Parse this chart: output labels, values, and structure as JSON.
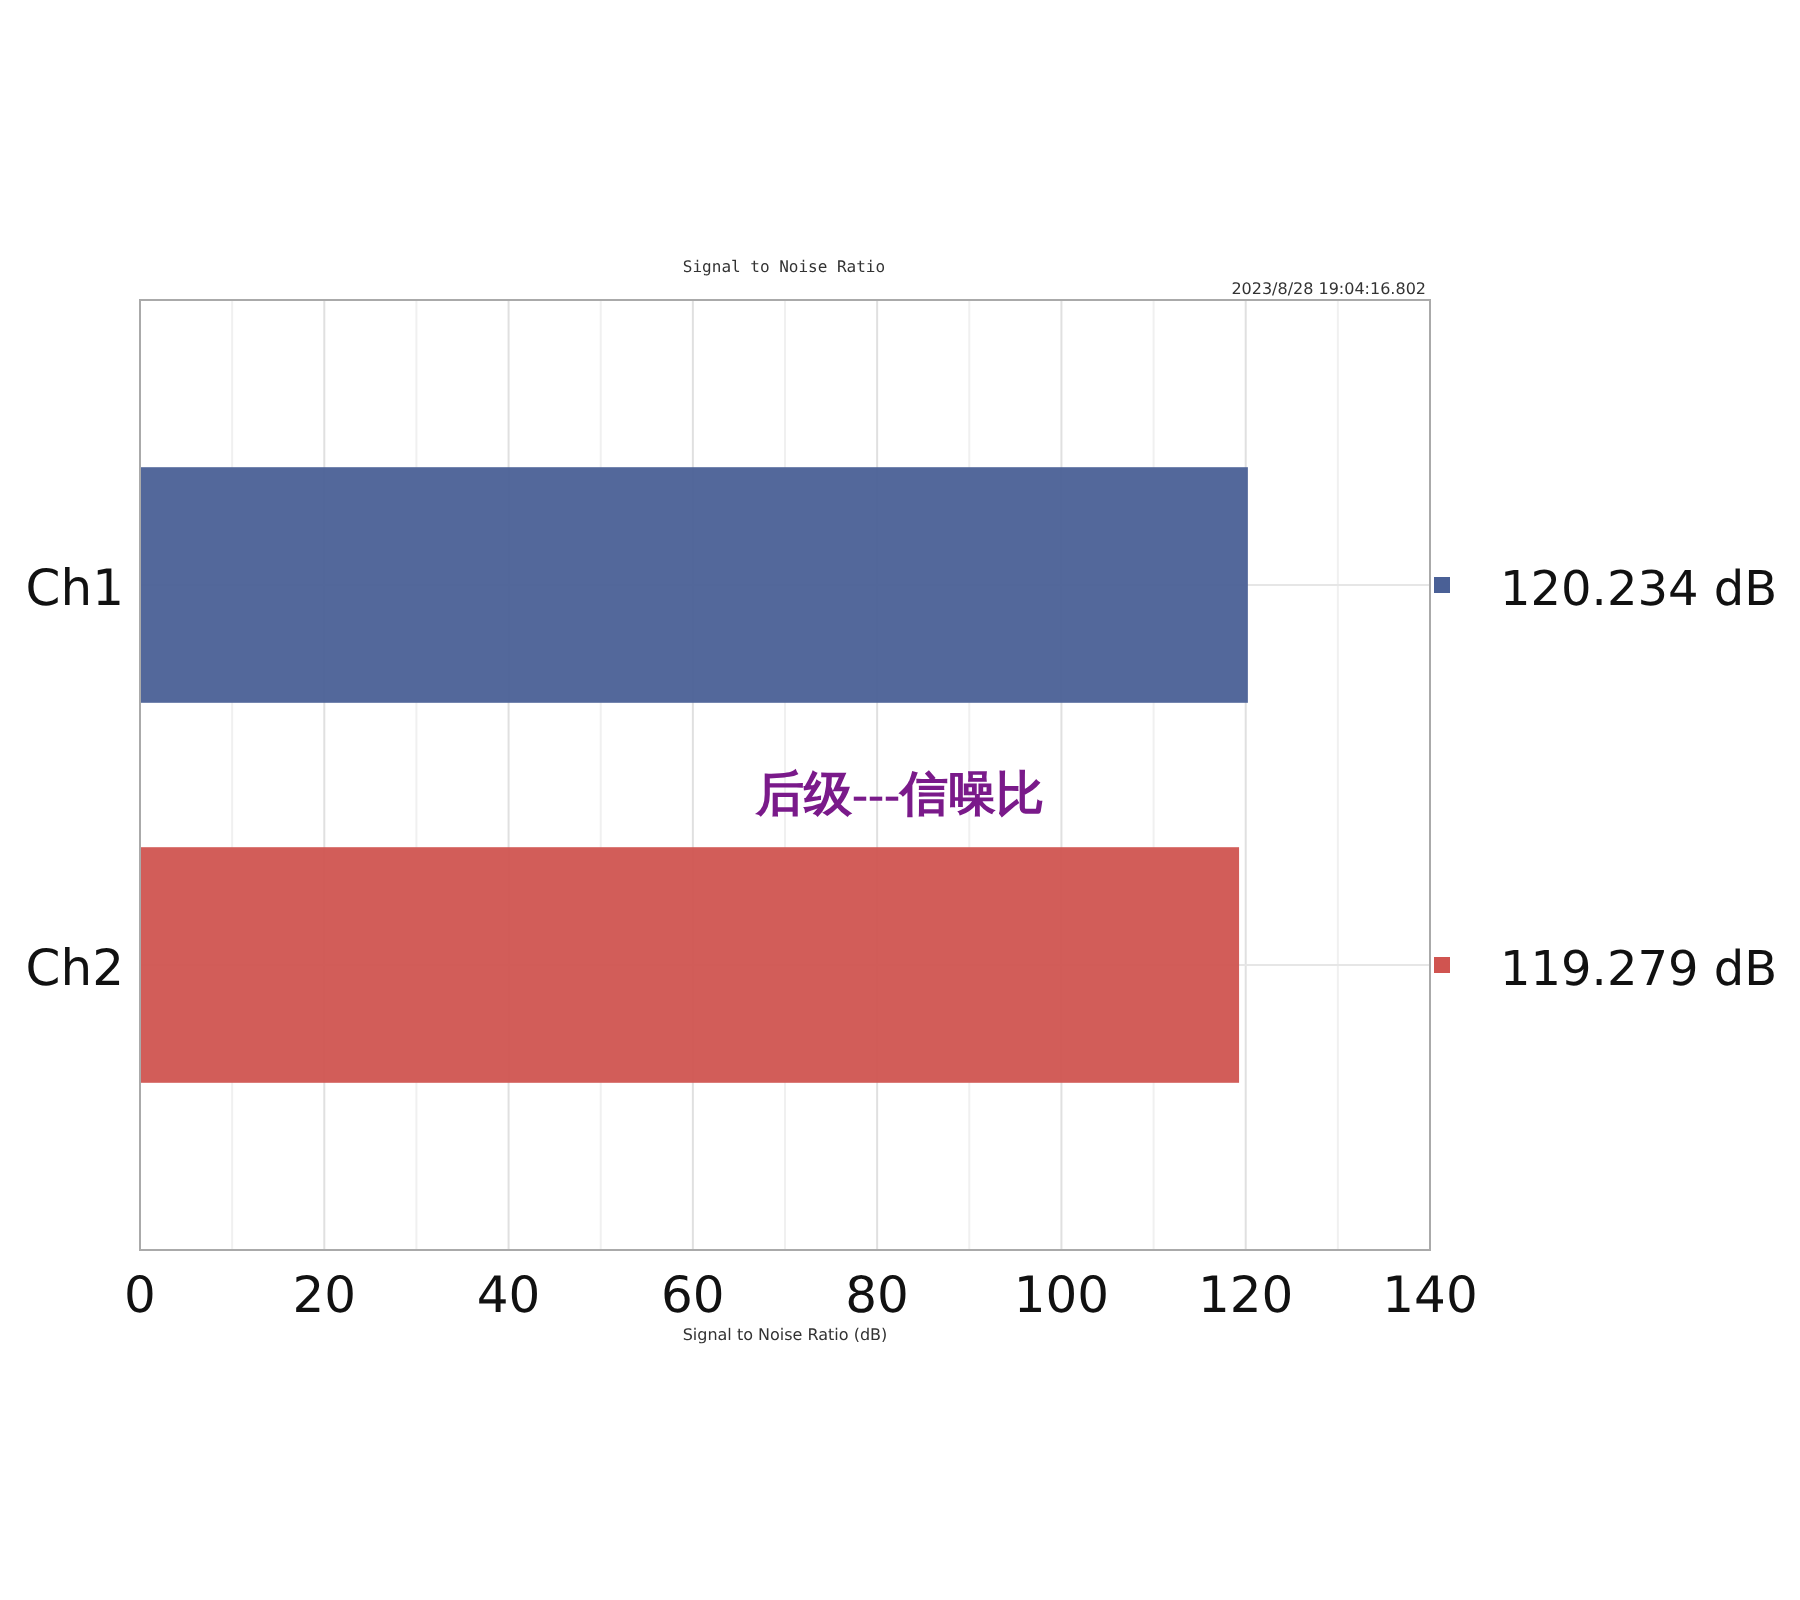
{
  "chart_data": {
    "type": "bar",
    "orientation": "horizontal",
    "title": "Signal to Noise Ratio",
    "subtitle": "2023/8/28 19:04:16.802",
    "xlabel": "Signal to Noise Ratio (dB)",
    "categories": [
      "Ch1",
      "Ch2"
    ],
    "values": [
      120.234,
      119.279
    ],
    "colors": [
      "#4a6096",
      "#d05450"
    ],
    "value_labels": [
      "120.234 dB",
      "119.279 dB"
    ],
    "xlim": [
      0,
      140
    ],
    "xticks": [
      0,
      20,
      40,
      60,
      80,
      100,
      120,
      140
    ],
    "grid": true,
    "annotations": [
      "后级---信噪比"
    ]
  }
}
